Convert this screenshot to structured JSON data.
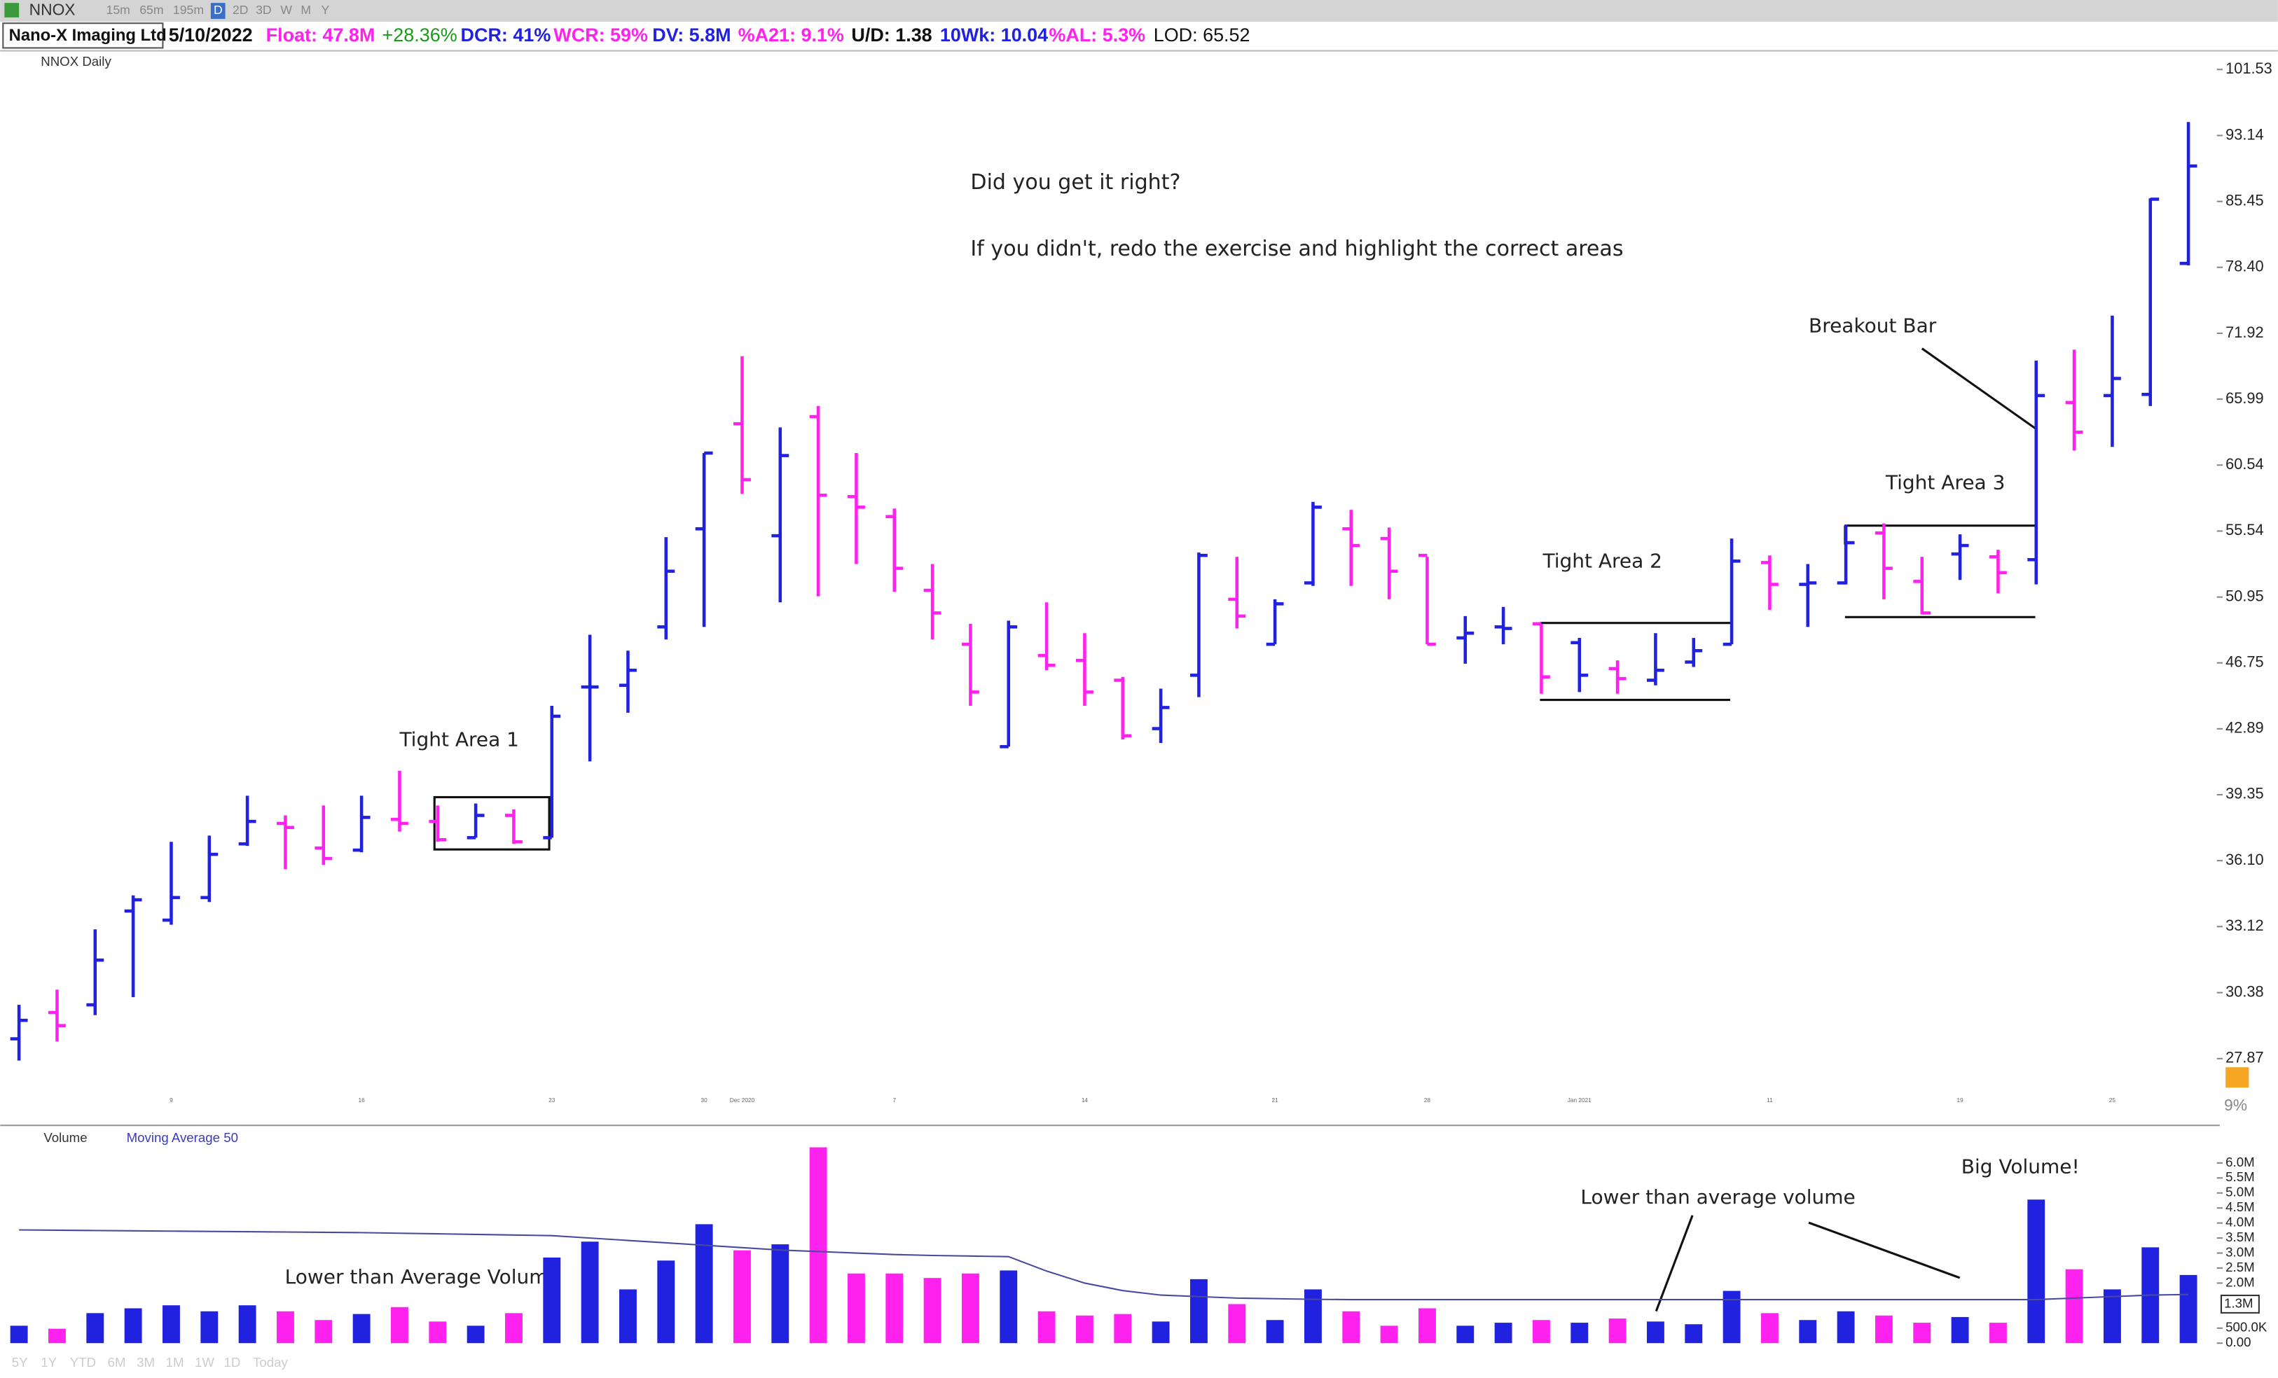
{
  "toolbar": {
    "symbol": "NNOX",
    "intervals": [
      "15m",
      "65m",
      "195m",
      "D",
      "2D",
      "3D",
      "W",
      "M",
      "Y"
    ]
  },
  "header": {
    "company": "Nano-X Imaging Ltd",
    "date": "5/10/2022",
    "float": "Float: 47.8M",
    "change": "+28.36%",
    "dcr": "DCR: 41%",
    "wcr": "WCR: 59%",
    "dv": "DV: 5.8M",
    "a21": "%A21: 9.1%",
    "ud": "U/D: 1.38",
    "wk10": "10Wk: 10.04",
    "al": "%AL: 5.3%",
    "lod": "LOD: 65.52"
  },
  "annotations": {
    "question": "Did you get it right?",
    "instruction": "If you didn't, redo the exercise and highlight the correct areas",
    "tight1": "Tight Area 1",
    "tight2": "Tight Area 2",
    "tight3": "Tight Area 3",
    "breakout": "Breakout Bar",
    "low_vol_1": "Lower than Average Volume",
    "low_vol_2": "Lower than average volume",
    "big_vol": "Big Volume!"
  },
  "scale_setting": "9%",
  "ranges": [
    "5Y",
    "1Y",
    "YTD",
    "6M",
    "3M",
    "1M",
    "1W",
    "1D",
    "Today"
  ],
  "chart_data": [
    {
      "type": "ohlc",
      "title": "NNOX Daily",
      "log_scale": true,
      "up_color": "#2121e0",
      "down_color": "#ff22ee",
      "categories": [
        null,
        null,
        null,
        null,
        "9",
        null,
        null,
        null,
        null,
        "16",
        null,
        null,
        null,
        null,
        "23",
        null,
        null,
        null,
        "30",
        "Dec 2020",
        null,
        null,
        null,
        "7",
        null,
        null,
        null,
        null,
        "14",
        null,
        null,
        null,
        null,
        "21",
        null,
        null,
        null,
        "28",
        null,
        null,
        null,
        "Jan 2021",
        null,
        null,
        null,
        null,
        "11",
        null,
        null,
        null,
        null,
        "19",
        null,
        null,
        null,
        "25",
        null,
        null
      ],
      "open": [
        28.6,
        29.6,
        29.9,
        33.8,
        33.4,
        34.4,
        36.9,
        37.9,
        36.7,
        36.6,
        38.1,
        38.0,
        37.2,
        38.3,
        37.2,
        45.3,
        45.4,
        49.0,
        55.7,
        63.9,
        55.2,
        64.5,
        58.1,
        56.6,
        51.4,
        47.9,
        41.9,
        47.2,
        46.9,
        45.7,
        42.9,
        46.0,
        50.8,
        47.9,
        51.9,
        55.7,
        55.0,
        53.8,
        48.3,
        49.0,
        49.2,
        48.0,
        46.4,
        45.7,
        46.8,
        47.9,
        53.3,
        51.8,
        51.9,
        55.4,
        52.0,
        53.9,
        53.7,
        53.5,
        65.7,
        66.3,
        66.4,
        78.8
      ],
      "high": [
        29.9,
        30.5,
        33.0,
        34.5,
        37.0,
        37.3,
        39.3,
        38.3,
        38.8,
        39.3,
        40.6,
        38.8,
        38.9,
        38.6,
        44.2,
        48.5,
        47.5,
        55.1,
        61.5,
        69.8,
        63.6,
        65.4,
        61.5,
        57.2,
        53.2,
        49.2,
        49.4,
        50.6,
        48.6,
        45.9,
        45.2,
        54.0,
        53.7,
        50.8,
        57.7,
        57.1,
        55.8,
        53.7,
        49.7,
        50.3,
        49.2,
        48.3,
        46.9,
        48.6,
        48.3,
        55.0,
        53.8,
        53.2,
        56.0,
        56.1,
        53.7,
        55.3,
        54.2,
        69.4,
        70.4,
        73.6,
        85.8,
        94.8
      ],
      "low": [
        27.8,
        28.5,
        29.5,
        30.2,
        33.2,
        34.2,
        36.8,
        35.7,
        35.9,
        36.5,
        37.5,
        37.0,
        37.2,
        36.9,
        37.2,
        41.1,
        43.8,
        48.2,
        49.0,
        58.3,
        50.6,
        51.0,
        53.2,
        51.3,
        48.2,
        44.2,
        41.9,
        46.3,
        44.2,
        42.3,
        42.1,
        44.7,
        48.9,
        47.9,
        51.7,
        51.7,
        50.8,
        47.9,
        46.7,
        47.9,
        44.9,
        45.0,
        44.9,
        45.4,
        46.5,
        47.9,
        50.1,
        49.0,
        51.8,
        50.8,
        49.8,
        52.1,
        51.2,
        51.8,
        61.7,
        62.0,
        65.4,
        78.6
      ],
      "close": [
        29.3,
        29.1,
        31.7,
        34.3,
        34.4,
        36.4,
        38.0,
        37.7,
        36.2,
        38.2,
        37.9,
        37.1,
        38.3,
        37.0,
        43.6,
        45.3,
        46.3,
        52.7,
        61.5,
        59.4,
        61.3,
        58.2,
        57.3,
        52.9,
        49.9,
        45.0,
        49.0,
        46.6,
        45.0,
        42.5,
        44.1,
        53.8,
        49.7,
        50.5,
        57.3,
        54.5,
        52.7,
        47.9,
        48.6,
        48.9,
        45.9,
        46.0,
        45.8,
        46.3,
        47.5,
        53.4,
        51.8,
        51.9,
        54.7,
        52.9,
        49.9,
        54.5,
        52.6,
        66.3,
        63.2,
        67.8,
        85.7,
        89.5
      ],
      "ylim": [
        26.28,
        104.04
      ],
      "yticks": [
        27.87,
        30.38,
        33.12,
        {
          "value": 36.1,
          "label": "36.10"
        },
        39.35,
        42.89,
        46.75,
        50.95,
        55.54,
        60.54,
        65.99,
        71.92,
        {
          "value": 78.4,
          "label": "78.40"
        },
        85.45,
        93.14,
        101.53
      ]
    },
    {
      "type": "bar",
      "title": "Volume",
      "series": [
        {
          "name": "Volume",
          "values": [
            580000,
            480000,
            1000000,
            1160000,
            1260000,
            1060000,
            1260000,
            1060000,
            770000,
            970000,
            1200000,
            720000,
            580000,
            1000000,
            2850000,
            3380000,
            1790000,
            2750000,
            3960000,
            3090000,
            3290000,
            6520000,
            2320000,
            2320000,
            2170000,
            2320000,
            2420000,
            1060000,
            920000,
            970000,
            720000,
            2130000,
            1300000,
            770000,
            1790000,
            1060000,
            580000,
            1160000,
            580000,
            680000,
            770000,
            680000,
            820000,
            720000,
            630000,
            1740000,
            1000000,
            770000,
            1060000,
            920000,
            680000,
            870000,
            680000,
            4780000,
            2460000,
            1790000,
            3190000,
            2270000
          ]
        },
        {
          "name": "Moving Average 50",
          "type": "line",
          "color": "#4a4a9c",
          "values": [
            3770000,
            3760000,
            3750000,
            3740000,
            3730000,
            3720000,
            3710000,
            3700000,
            3690000,
            3680000,
            3660000,
            3640000,
            3620000,
            3600000,
            3580000,
            3500000,
            3420000,
            3340000,
            3260000,
            3180000,
            3100000,
            3050000,
            3000000,
            2950000,
            2920000,
            2900000,
            2880000,
            2400000,
            2000000,
            1750000,
            1600000,
            1550000,
            1500000,
            1480000,
            1460000,
            1450000,
            1450000,
            1450000,
            1450000,
            1450000,
            1450000,
            1450000,
            1450000,
            1450000,
            1450000,
            1450000,
            1450000,
            1450000,
            1450000,
            1450000,
            1450000,
            1450000,
            1450000,
            1450000,
            1500000,
            1550000,
            1600000,
            1620000
          ]
        }
      ],
      "ylim": [
        0,
        6720000
      ],
      "yticks": [
        {
          "value": 0,
          "label": "0.00"
        },
        {
          "value": 500000,
          "label": "500.0K"
        },
        {
          "value": 2000000,
          "label": "2.0M"
        },
        {
          "value": 2500000,
          "label": "2.5M"
        },
        {
          "value": 3000000,
          "label": "3.0M"
        },
        {
          "value": 3500000,
          "label": "3.5M"
        },
        {
          "value": 4000000,
          "label": "4.0M"
        },
        {
          "value": 4500000,
          "label": "4.5M"
        },
        {
          "value": 5000000,
          "label": "5.0M"
        },
        {
          "value": 5500000,
          "label": "5.5M"
        },
        {
          "value": 6000000,
          "label": "6.0M"
        }
      ],
      "current_value": {
        "value": 1300000,
        "label": "1.3M"
      }
    }
  ]
}
